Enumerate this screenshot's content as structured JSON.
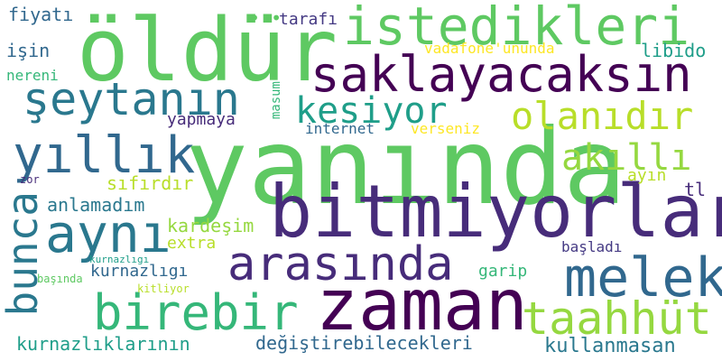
{
  "palette": {
    "green": "#5ec962",
    "lightgreen": "#95d840",
    "yellowgreen": "#b8de29",
    "yellow": "#fde725",
    "teal": "#2a788e",
    "blue": "#31688e",
    "indigo": "#443983",
    "purple": "#440154",
    "darkpurple": "#472c7a",
    "seagreen": "#22a884",
    "mint": "#35b779",
    "cyan": "#1f9e89"
  },
  "words": [
    {
      "id": "yaninda",
      "text": "yanında",
      "color": "#5ec962"
    },
    {
      "id": "oldur",
      "text": "öldür",
      "color": "#5ec962"
    },
    {
      "id": "bitmiyorlar",
      "text": "bitmiyorlar",
      "color": "#472c7a"
    },
    {
      "id": "zaman",
      "text": "zaman",
      "color": "#440154"
    },
    {
      "id": "istedikleri",
      "text": "istedikleri",
      "color": "#5ec962"
    },
    {
      "id": "saklayacaksin",
      "text": "saklayacaksın",
      "color": "#440154"
    },
    {
      "id": "seytanin",
      "text": "şeytanın",
      "color": "#2a788e"
    },
    {
      "id": "yillik",
      "text": "yıllık",
      "color": "#31688e"
    },
    {
      "id": "ayni",
      "text": "aynı",
      "color": "#2a788e"
    },
    {
      "id": "arasinda",
      "text": "arasında",
      "color": "#472c7a"
    },
    {
      "id": "melek",
      "text": "melek",
      "color": "#31688e"
    },
    {
      "id": "birebir",
      "text": "birebir",
      "color": "#35b779"
    },
    {
      "id": "taahhut",
      "text": "taahhüt",
      "color": "#95d840"
    },
    {
      "id": "bunca",
      "text": "bunca",
      "color": "#2a788e"
    },
    {
      "id": "olanidir",
      "text": "olanıdır",
      "color": "#b8de29"
    },
    {
      "id": "kesiyor",
      "text": "kesiyor",
      "color": "#1f9e89"
    },
    {
      "id": "akilli",
      "text": "akıllı",
      "color": "#95d840"
    },
    {
      "id": "kullanmasan",
      "text": "kullanmasan",
      "color": "#2a788e"
    },
    {
      "id": "degistirebilecekleri",
      "text": "değiştirebilecekleri",
      "color": "#31688e"
    },
    {
      "id": "kurnazliklarinin",
      "text": "kurnazlıklarının",
      "color": "#1f9e89"
    },
    {
      "id": "anlamadim",
      "text": "anlamadım",
      "color": "#2a788e"
    },
    {
      "id": "kardesim",
      "text": "kardeşim",
      "color": "#95d840"
    },
    {
      "id": "extra",
      "text": "extra",
      "color": "#b8de29"
    },
    {
      "id": "kurnazligi",
      "text": "kurnazlıgı",
      "color": "#31688e"
    },
    {
      "id": "sifirdir",
      "text": "sıfırdır",
      "color": "#b8de29"
    },
    {
      "id": "yapmaya",
      "text": "yapmaya",
      "color": "#472c7a"
    },
    {
      "id": "internet",
      "text": "internet",
      "color": "#31688e"
    },
    {
      "id": "verseniz",
      "text": "verseniz",
      "color": "#fde725"
    },
    {
      "id": "fiyati",
      "text": "fiyatı",
      "color": "#31688e"
    },
    {
      "id": "isin",
      "text": "işin",
      "color": "#31688e"
    },
    {
      "id": "nereni",
      "text": "nereni",
      "color": "#35b779"
    },
    {
      "id": "tarafi",
      "text": "tarafı",
      "color": "#443983"
    },
    {
      "id": "vadafone",
      "text": "vadafone'ununda",
      "color": "#fde725"
    },
    {
      "id": "libido",
      "text": "libido",
      "color": "#1f9e89"
    },
    {
      "id": "masum",
      "text": "masum",
      "color": "#35b779"
    },
    {
      "id": "ayin",
      "text": "ayın",
      "color": "#b8de29"
    },
    {
      "id": "tl",
      "text": "tl",
      "color": "#472c7a"
    },
    {
      "id": "basladi",
      "text": "başladı",
      "color": "#443983"
    },
    {
      "id": "garip",
      "text": "garip",
      "color": "#35b779"
    },
    {
      "id": "zor",
      "text": "zor",
      "color": "#472c7a"
    },
    {
      "id": "kurnazligi_small",
      "text": "kurnazlıgı",
      "color": "#1f9e89"
    },
    {
      "id": "basinda",
      "text": "başında",
      "color": "#5ec962"
    },
    {
      "id": "kitliyor",
      "text": "kitliyor",
      "color": "#b8de29"
    },
    {
      "id": "dots_oldur",
      "text": "• •",
      "color": "#5ec962"
    }
  ]
}
